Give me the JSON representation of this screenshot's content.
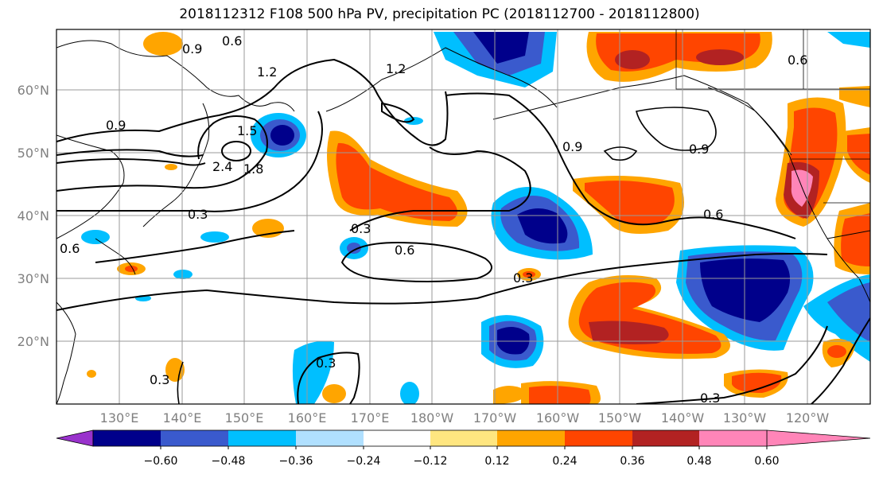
{
  "title": "2018112312 F108 500 hPa PV, precipitation PC (2018112700 - 2018112800)",
  "lat_labels": [
    "60°N",
    "50°N",
    "40°N",
    "30°N",
    "20°N"
  ],
  "lon_labels": [
    "130°E",
    "140°E",
    "150°E",
    "160°E",
    "170°E",
    "180°W",
    "170°W",
    "160°W",
    "150°W",
    "140°W",
    "130°W",
    "120°W"
  ],
  "colorbar": {
    "ticks": [
      "−0.60",
      "−0.48",
      "−0.36",
      "−0.24",
      "−0.12",
      "0.12",
      "0.24",
      "0.36",
      "0.48",
      "0.60"
    ],
    "colors": [
      "#9932CC",
      "#00008B",
      "#3A5ACD",
      "#00BFFF",
      "#B0E0FF",
      "#FFFFFF",
      "#FFE680",
      "#FFA500",
      "#FF4500",
      "#B22222",
      "#FF85B8"
    ]
  },
  "contour_labels": [
    "0.6",
    "0.9",
    "1.2",
    "0.9",
    "1.2",
    "2.4",
    "1.5",
    "1.8",
    "0.3",
    "0.3",
    "0.6",
    "0.3",
    "0.9",
    "0.9",
    "0.6",
    "0.3",
    "0.3",
    "0.3",
    "0.6",
    "0.6"
  ]
}
